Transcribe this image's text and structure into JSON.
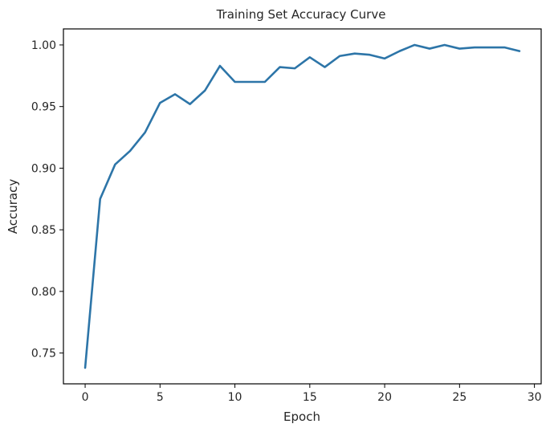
{
  "chart_data": {
    "type": "line",
    "title": "Training Set Accuracy Curve",
    "xlabel": "Epoch",
    "ylabel": "Accuracy",
    "xlim": [
      -1.45,
      30.45
    ],
    "ylim": [
      0.725,
      1.013
    ],
    "xticks": [
      0,
      5,
      10,
      15,
      20,
      25,
      30
    ],
    "xtick_labels": [
      "0",
      "5",
      "10",
      "15",
      "20",
      "25",
      "30"
    ],
    "yticks": [
      0.75,
      0.8,
      0.85,
      0.9,
      0.95,
      1.0
    ],
    "ytick_labels": [
      "0.75",
      "0.80",
      "0.85",
      "0.90",
      "0.95",
      "1.00"
    ],
    "grid": false,
    "line_color": "#2d75a8",
    "series": [
      {
        "x": [
          0,
          1,
          2,
          3,
          4,
          5,
          6,
          7,
          8,
          9,
          10,
          11,
          12,
          13,
          14,
          15,
          16,
          17,
          18,
          19,
          20,
          21,
          22,
          23,
          24,
          25,
          26,
          27,
          28,
          29
        ],
        "values": [
          0.738,
          0.875,
          0.903,
          0.914,
          0.929,
          0.953,
          0.96,
          0.952,
          0.963,
          0.983,
          0.97,
          0.97,
          0.97,
          0.982,
          0.981,
          0.99,
          0.982,
          0.991,
          0.993,
          0.992,
          0.989,
          0.995,
          1.0,
          0.997,
          1.0,
          0.997,
          0.998,
          0.998,
          0.998,
          0.995
        ]
      }
    ]
  }
}
